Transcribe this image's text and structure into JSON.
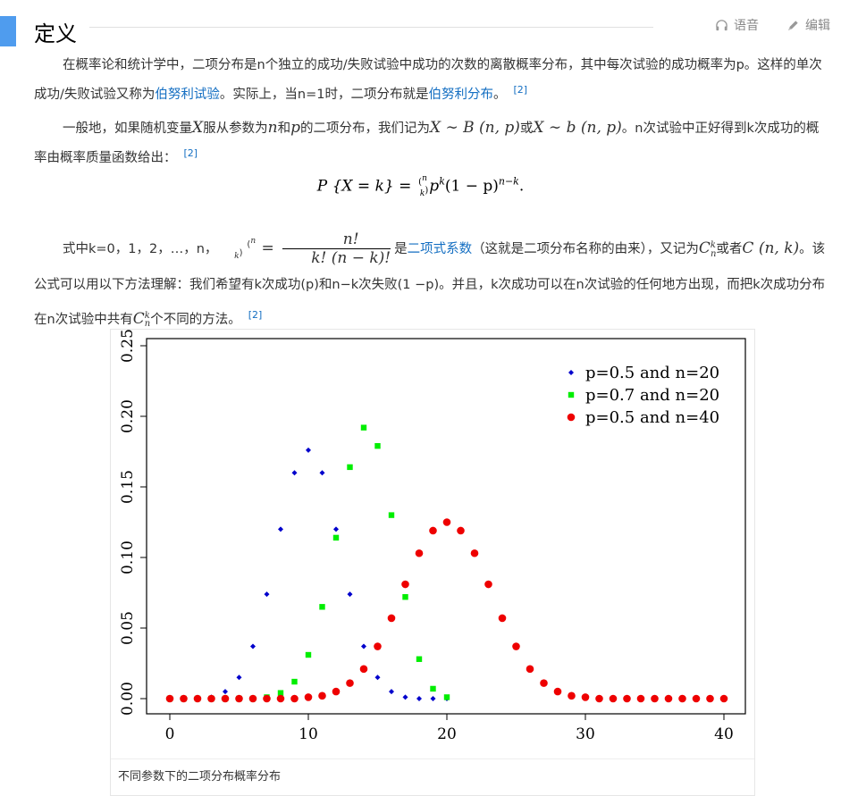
{
  "section": {
    "title": "定义",
    "tools": {
      "voice": "语音",
      "edit": "编辑"
    }
  },
  "p1": {
    "text1": "在概率论和统计学中，二项分布是n个独立的成功/失败试验中成功的次数的离散概率分布，其中每次试验的成功概率为p。这样的单次成功/失败试验又称为",
    "link1": "伯努利试验",
    "text2": "。实际上，当n=1时，二项分布就是",
    "link2": "伯努利分布",
    "text3": "。",
    "ref": "[2]"
  },
  "p2": {
    "text1": "一般地，如果随机变量",
    "text2": "服从参数为",
    "text3": "和",
    "text4": "的二项分布，我们记为",
    "text5": "或",
    "text6": "。n次试验中正好得到k次成功的概率由概率质量函数给出：",
    "ref": "[2]",
    "sym_X": "X",
    "sym_n": "n",
    "sym_p": "p",
    "expr1": "X ∼ B (n, p)",
    "expr2": "X ∼ b (n, p)"
  },
  "formula": {
    "lhs": "P {X = k} = ",
    "rhs": "p",
    "rhs_sup": "k",
    "mid": "(1 − p)",
    "mid_sup": "n−k",
    "end": "."
  },
  "p3": {
    "text1": "式中k=0，1，2，…，n，",
    "eq": " = ",
    "frac_num": "n!",
    "frac_den": "k! (n − k)!",
    "text2": "是",
    "link1": "二项式系数",
    "text3": "（这就是二项分布名称的由来），又记为",
    "sym_C": "C",
    "text4": "或者",
    "expr_C": "C (n, k)",
    "text5": "。该公式可以用以下方法理解：我们希望有k次成功(p)和n−k次失败(1 −p)。并且，k次成功可以在n次试验的任何地方出现，而把k次成功分布在n次试验中共有",
    "text6": "个不同的方法。",
    "ref": "[2]"
  },
  "figure": {
    "caption": "不同参数下的二项分布概率分布"
  },
  "chart_data": {
    "type": "scatter",
    "xlim": [
      0,
      40
    ],
    "ylim": [
      0,
      0.25
    ],
    "x_ticks": [
      0,
      10,
      20,
      30,
      40
    ],
    "y_ticks": [
      0.0,
      0.05,
      0.1,
      0.15,
      0.2,
      0.25
    ],
    "y_tick_labels": [
      "0.00",
      "0.05",
      "0.10",
      "0.15",
      "0.20",
      "0.25"
    ],
    "legend_position": "top-right",
    "series": [
      {
        "name": "p=0.5 and n=20",
        "color": "#0000cc",
        "marker": "diamond",
        "x": [
          0,
          1,
          2,
          3,
          4,
          5,
          6,
          7,
          8,
          9,
          10,
          11,
          12,
          13,
          14,
          15,
          16,
          17,
          18,
          19,
          20
        ],
        "y": [
          0.0,
          0.0,
          0.0,
          0.001,
          0.005,
          0.015,
          0.037,
          0.074,
          0.12,
          0.16,
          0.176,
          0.16,
          0.12,
          0.074,
          0.037,
          0.015,
          0.005,
          0.001,
          0.0,
          0.0,
          0.0
        ]
      },
      {
        "name": "p=0.7 and n=20",
        "color": "#00ee00",
        "marker": "square",
        "x": [
          0,
          1,
          2,
          3,
          4,
          5,
          6,
          7,
          8,
          9,
          10,
          11,
          12,
          13,
          14,
          15,
          16,
          17,
          18,
          19,
          20
        ],
        "y": [
          0.0,
          0.0,
          0.0,
          0.0,
          0.0,
          0.0,
          0.0,
          0.001,
          0.004,
          0.012,
          0.031,
          0.065,
          0.114,
          0.164,
          0.192,
          0.179,
          0.13,
          0.072,
          0.028,
          0.007,
          0.001
        ]
      },
      {
        "name": "p=0.5 and n=40",
        "color": "#ee0000",
        "marker": "circle",
        "x": [
          0,
          1,
          2,
          3,
          4,
          5,
          6,
          7,
          8,
          9,
          10,
          11,
          12,
          13,
          14,
          15,
          16,
          17,
          18,
          19,
          20,
          21,
          22,
          23,
          24,
          25,
          26,
          27,
          28,
          29,
          30,
          31,
          32,
          33,
          34,
          35,
          36,
          37,
          38,
          39,
          40
        ],
        "y": [
          0,
          0,
          0,
          0,
          0,
          0,
          0,
          0,
          0,
          0,
          0.001,
          0.002,
          0.005,
          0.011,
          0.021,
          0.037,
          0.057,
          0.081,
          0.103,
          0.119,
          0.125,
          0.119,
          0.103,
          0.081,
          0.057,
          0.037,
          0.021,
          0.011,
          0.005,
          0.002,
          0.001,
          0,
          0,
          0,
          0,
          0,
          0,
          0,
          0,
          0,
          0
        ]
      }
    ]
  }
}
